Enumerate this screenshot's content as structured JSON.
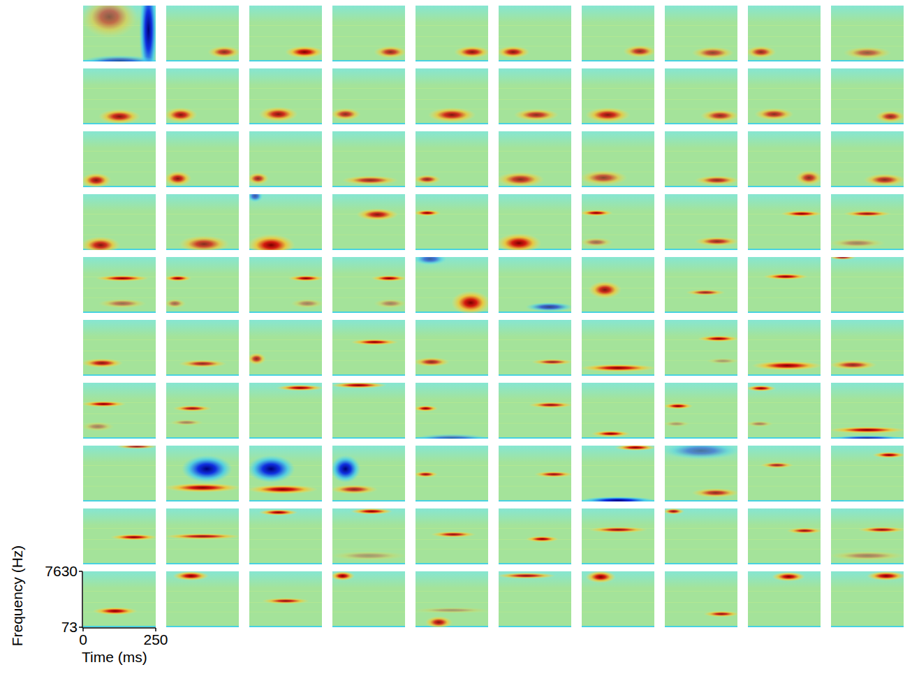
{
  "chart_data": {
    "type": "heatmap",
    "x_label": "Time (ms)",
    "y_label": "Frequency (Hz)",
    "xlim": [
      0,
      250
    ],
    "ylim": [
      73,
      7630
    ],
    "xticks": [
      0,
      250
    ],
    "yticks": [
      73,
      7630
    ],
    "log": "y",
    "panels": [
      [
        [
          0,
          180,
          3000,
          0.6,
          3
        ],
        [
          200,
          250,
          1000,
          -1,
          20
        ],
        [
          0,
          250,
          75,
          -0.6,
          1.3
        ]
      ],
      [
        [
          150,
          250,
          160,
          0.8,
          1.3
        ]
      ],
      [
        [
          130,
          250,
          160,
          1,
          1.3
        ]
      ],
      [
        [
          150,
          250,
          160,
          0.8,
          1.3
        ]
      ],
      [
        [
          140,
          250,
          160,
          0.9,
          1.3
        ]
      ],
      [
        [
          0,
          100,
          160,
          0.9,
          1.3
        ]
      ],
      [
        [
          150,
          250,
          170,
          0.8,
          1.3
        ]
      ],
      [
        [
          100,
          230,
          150,
          0.7,
          1.3
        ]
      ],
      [
        [
          0,
          90,
          160,
          0.8,
          1.3
        ]
      ],
      [
        [
          50,
          200,
          150,
          0.6,
          1.3
        ]
      ],
      [
        [
          60,
          190,
          140,
          0.9,
          1.4
        ]
      ],
      [
        [
          0,
          100,
          160,
          0.9,
          1.4
        ]
      ],
      [
        [
          40,
          160,
          170,
          0.9,
          1.4
        ]
      ],
      [
        [
          0,
          90,
          170,
          0.8,
          1.3
        ]
      ],
      [
        [
          50,
          200,
          160,
          0.9,
          1.4
        ]
      ],
      [
        [
          60,
          200,
          160,
          0.8,
          1.3
        ]
      ],
      [
        [
          20,
          160,
          160,
          0.9,
          1.4
        ]
      ],
      [
        [
          130,
          250,
          150,
          0.8,
          1.3
        ]
      ],
      [
        [
          30,
          150,
          170,
          0.8,
          1.3
        ]
      ],
      [
        [
          160,
          250,
          140,
          0.8,
          1.3
        ]
      ],
      [
        [
          0,
          90,
          130,
          0.9,
          1.4
        ]
      ],
      [
        [
          0,
          80,
          150,
          0.9,
          1.4
        ]
      ],
      [
        [
          0,
          60,
          150,
          0.8,
          1.3
        ]
      ],
      [
        [
          40,
          220,
          130,
          0.8,
          1.2
        ]
      ],
      [
        [
          0,
          80,
          140,
          0.8,
          1.2
        ]
      ],
      [
        [
          0,
          150,
          140,
          0.8,
          1.4
        ]
      ],
      [
        [
          0,
          150,
          160,
          0.7,
          1.4
        ]
      ],
      [
        [
          110,
          250,
          130,
          0.8,
          1.2
        ]
      ],
      [
        [
          170,
          250,
          160,
          0.8,
          1.4
        ]
      ],
      [
        [
          120,
          250,
          135,
          0.8,
          1.3
        ]
      ],
      [
        [
          0,
          120,
          110,
          0.9,
          1.5
        ]
      ],
      [
        [
          50,
          210,
          120,
          0.8,
          1.5
        ]
      ],
      [
        [
          0,
          150,
          110,
          1,
          1.7
        ],
        [
          0,
          40,
          6500,
          -0.6,
          1.3
        ]
      ],
      [
        [
          90,
          220,
          1400,
          0.9,
          1.3
        ]
      ],
      [
        [
          0,
          80,
          1600,
          1,
          1.1
        ]
      ],
      [
        [
          0,
          140,
          130,
          1,
          1.6
        ]
      ],
      [
        [
          0,
          100,
          1600,
          1,
          1.1
        ],
        [
          0,
          100,
          140,
          0.5,
          1.2
        ]
      ],
      [
        [
          110,
          250,
          150,
          0.8,
          1.2
        ]
      ],
      [
        [
          120,
          250,
          1500,
          1,
          1.1
        ]
      ],
      [
        [
          50,
          200,
          1500,
          0.9,
          1.1
        ],
        [
          0,
          180,
          130,
          0.4,
          1.2
        ]
      ],
      [
        [
          50,
          220,
          1300,
          1,
          1.1
        ],
        [
          60,
          210,
          160,
          0.5,
          1.2
        ]
      ],
      [
        [
          0,
          80,
          1300,
          1,
          1.1
        ],
        [
          0,
          60,
          160,
          0.5,
          1.2
        ]
      ],
      [
        [
          140,
          250,
          1300,
          1,
          1.1
        ],
        [
          150,
          250,
          160,
          0.4,
          1.2
        ]
      ],
      [
        [
          140,
          250,
          1300,
          1,
          1.1
        ],
        [
          150,
          250,
          160,
          0.4,
          1.2
        ]
      ],
      [
        [
          130,
          250,
          170,
          1,
          1.8
        ],
        [
          0,
          100,
          6500,
          -0.6,
          1.3
        ]
      ],
      [
        [
          100,
          250,
          120,
          -0.7,
          1.2
        ]
      ],
      [
        [
          30,
          130,
          500,
          0.9,
          1.5
        ]
      ],
      [
        [
          80,
          200,
          400,
          0.8,
          1.1
        ]
      ],
      [
        [
          60,
          200,
          1500,
          1,
          1.1
        ]
      ],
      [
        [
          0,
          80,
          7300,
          0.8,
          1.05
        ]
      ],
      [
        [
          0,
          130,
          210,
          0.9,
          1.2
        ]
      ],
      [
        [
          50,
          200,
          200,
          0.8,
          1.15
        ]
      ],
      [
        [
          0,
          50,
          300,
          0.8,
          1.3
        ]
      ],
      [
        [
          70,
          220,
          1200,
          1,
          1.1
        ]
      ],
      [
        [
          0,
          110,
          230,
          0.8,
          1.2
        ]
      ],
      [
        [
          120,
          250,
          230,
          0.8,
          1.1
        ]
      ],
      [
        [
          0,
          250,
          140,
          1,
          1.15
        ]
      ],
      [
        [
          120,
          250,
          1600,
          1,
          1.1
        ],
        [
          150,
          250,
          250,
          0.3,
          1.1
        ]
      ],
      [
        [
          20,
          250,
          170,
          1,
          1.2
        ]
      ],
      [
        [
          0,
          150,
          180,
          0.8,
          1.2
        ]
      ],
      [
        [
          0,
          140,
          1300,
          1,
          1.1
        ],
        [
          0,
          100,
          200,
          0.4,
          1.2
        ]
      ],
      [
        [
          30,
          150,
          900,
          0.9,
          1.1
        ],
        [
          20,
          120,
          280,
          0.4,
          1.1
        ]
      ],
      [
        [
          100,
          250,
          5000,
          1,
          1.1
        ]
      ],
      [
        [
          0,
          180,
          6200,
          1,
          1.1
        ]
      ],
      [
        [
          0,
          70,
          900,
          1,
          1.1
        ],
        [
          0,
          250,
          75,
          -0.5,
          1.2
        ]
      ],
      [
        [
          110,
          250,
          1200,
          0.9,
          1.1
        ]
      ],
      [
        [
          40,
          160,
          110,
          1,
          1.1
        ]
      ],
      [
        [
          0,
          90,
          1100,
          1,
          1.1
        ],
        [
          0,
          80,
          250,
          0.3,
          1.1
        ]
      ],
      [
        [
          0,
          90,
          4800,
          1,
          1.1
        ],
        [
          0,
          80,
          250,
          0.4,
          1.1
        ]
      ],
      [
        [
          0,
          250,
          150,
          1,
          1.12
        ],
        [
          0,
          250,
          75,
          -0.8,
          1.1
        ]
      ],
      [
        [
          120,
          250,
          7000,
          0.8,
          1.05
        ]
      ],
      [
        [
          0,
          250,
          230,
          1,
          1.2
        ],
        [
          60,
          220,
          1100,
          -1,
          2.0
        ]
      ],
      [
        [
          0,
          230,
          200,
          1,
          1.2
        ],
        [
          0,
          150,
          1100,
          -1,
          2.0
        ]
      ],
      [
        [
          0,
          150,
          200,
          0.8,
          1.2
        ],
        [
          0,
          90,
          1100,
          -1,
          2.0
        ]
      ],
      [
        [
          0,
          70,
          700,
          0.9,
          1.1
        ]
      ],
      [
        [
          130,
          250,
          700,
          0.9,
          1.1
        ]
      ],
      [
        [
          120,
          250,
          6500,
          1,
          1.1
        ],
        [
          0,
          250,
          80,
          -1,
          1.15
        ]
      ],
      [
        [
          100,
          250,
          150,
          0.8,
          1.2
        ],
        [
          0,
          250,
          5000,
          -0.5,
          1.5
        ]
      ],
      [
        [
          50,
          150,
          1500,
          0.8,
          1.1
        ]
      ],
      [
        [
          150,
          250,
          3500,
          1,
          1.1
        ]
      ],
      [
        [
          100,
          250,
          700,
          1,
          1.1
        ]
      ],
      [
        [
          0,
          250,
          750,
          0.9,
          1.1
        ]
      ],
      [
        [
          40,
          160,
          5500,
          1,
          1.1
        ]
      ],
      [
        [
          70,
          200,
          6000,
          1,
          1.1
        ],
        [
          0,
          250,
          150,
          0.3,
          1.2
        ]
      ],
      [
        [
          60,
          200,
          880,
          0.9,
          1.1
        ]
      ],
      [
        [
          100,
          200,
          600,
          1,
          1.1
        ]
      ],
      [
        [
          30,
          220,
          1300,
          0.9,
          1.1
        ]
      ],
      [
        [
          0,
          60,
          6000,
          0.9,
          1.1
        ]
      ],
      [
        [
          140,
          250,
          1200,
          0.9,
          1.1
        ]
      ],
      [
        [
          100,
          250,
          1300,
          0.9,
          1.1
        ],
        [
          0,
          250,
          150,
          0.4,
          1.2
        ]
      ],
      [
        [
          40,
          180,
          280,
          1,
          1.15
        ]
      ],
      [
        [
          30,
          140,
          5200,
          1,
          1.2
        ]
      ],
      [
        [
          50,
          200,
          650,
          0.9,
          1.1
        ]
      ],
      [
        [
          0,
          70,
          5200,
          1,
          1.2
        ]
      ],
      [
        [
          40,
          120,
          110,
          0.9,
          1.3
        ],
        [
          0,
          250,
          300,
          0.3,
          1.1
        ]
      ],
      [
        [
          0,
          190,
          5300,
          0.9,
          1.1
        ]
      ],
      [
        [
          20,
          110,
          4800,
          1,
          1.3
        ]
      ],
      [
        [
          140,
          250,
          220,
          0.9,
          1.1
        ]
      ],
      [
        [
          90,
          190,
          4900,
          1,
          1.2
        ]
      ],
      [
        [
          130,
          250,
          5200,
          1,
          1.2
        ]
      ]
    ]
  }
}
